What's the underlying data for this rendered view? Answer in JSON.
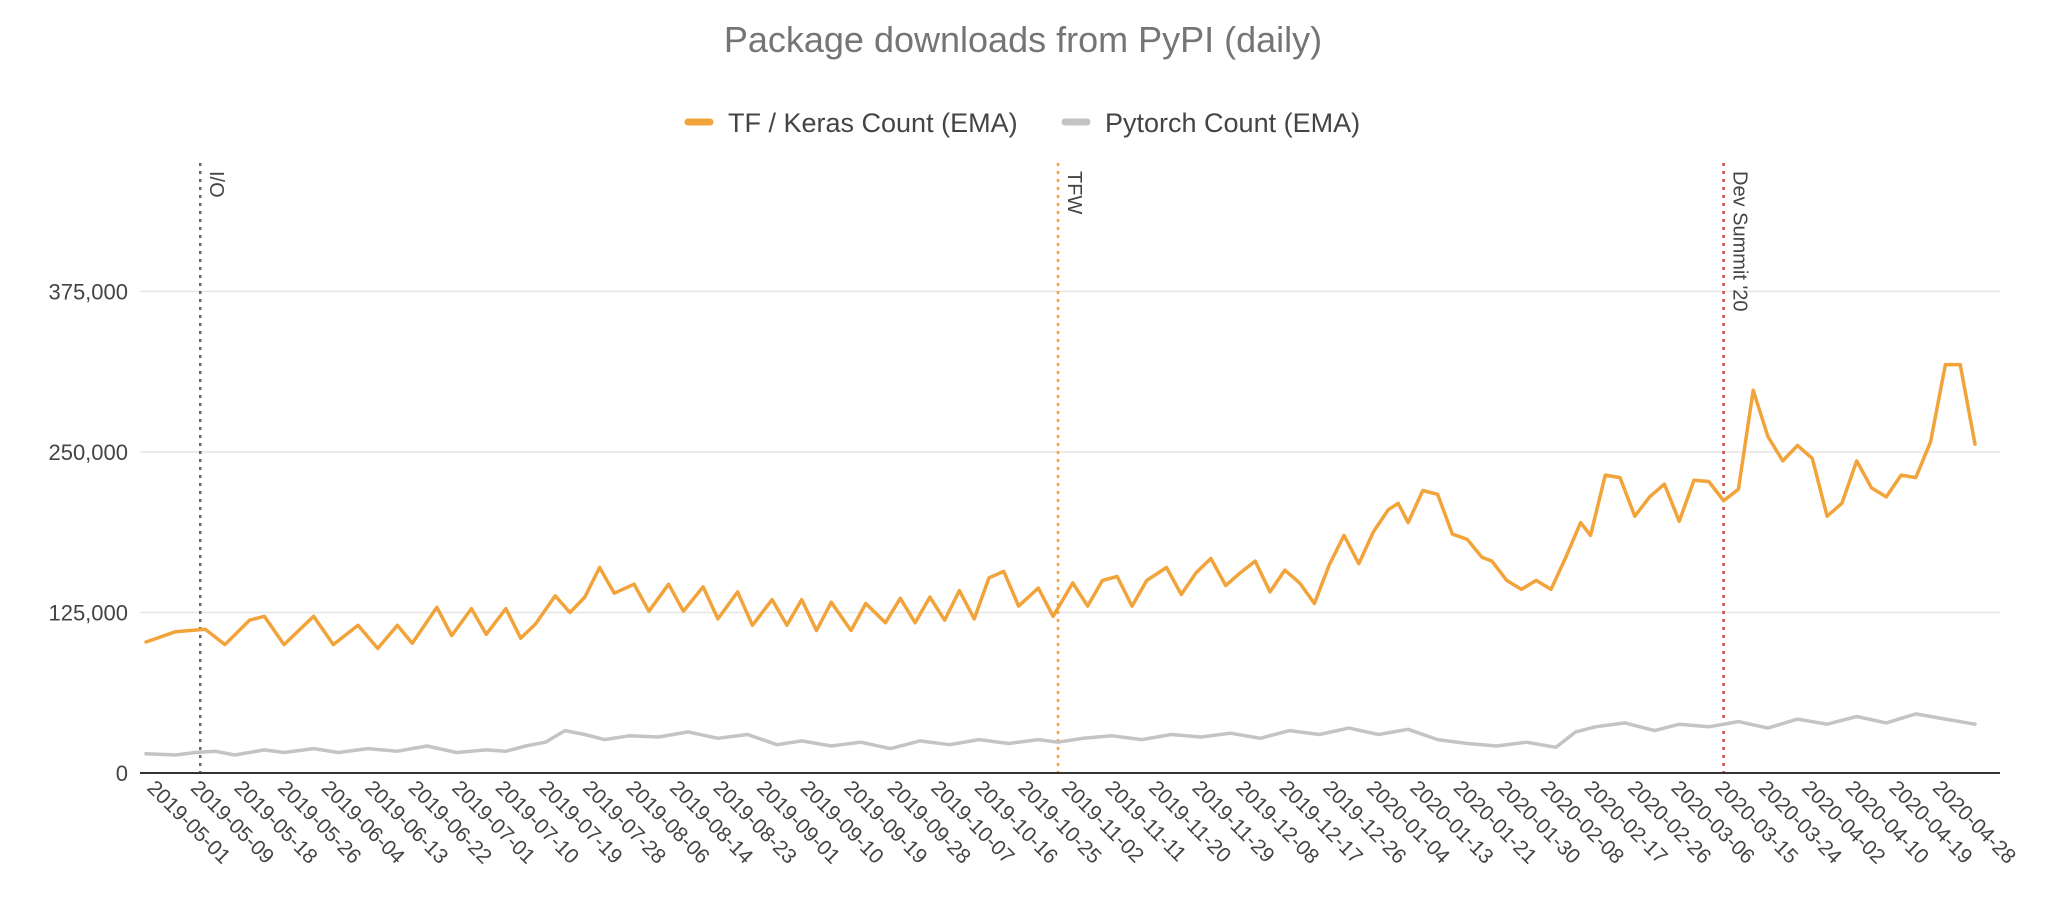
{
  "chart_data": {
    "type": "line",
    "title": "Package downloads from PyPI (daily)",
    "legend_position": "top-center",
    "grid": true,
    "ylim": [
      0,
      475000
    ],
    "y_ticks": [
      {
        "value": 0,
        "label": "0"
      },
      {
        "value": 125000,
        "label": "125,000"
      },
      {
        "value": 250000,
        "label": "250,000"
      },
      {
        "value": 375000,
        "label": "375,000"
      }
    ],
    "x_start": "2019-04-26",
    "x_end": "2020-05-01",
    "x_tick_labels": [
      "2019-05-01",
      "2019-05-09",
      "2019-05-18",
      "2019-05-26",
      "2019-06-04",
      "2019-06-13",
      "2019-06-22",
      "2019-07-01",
      "2019-07-10",
      "2019-07-19",
      "2019-07-28",
      "2019-08-06",
      "2019-08-14",
      "2019-08-23",
      "2019-09-01",
      "2019-09-10",
      "2019-09-19",
      "2019-09-28",
      "2019-10-07",
      "2019-10-16",
      "2019-10-25",
      "2019-11-02",
      "2019-11-11",
      "2019-11-20",
      "2019-11-29",
      "2019-12-08",
      "2019-12-17",
      "2019-12-26",
      "2020-01-04",
      "2020-01-13",
      "2020-01-21",
      "2020-01-30",
      "2020-02-08",
      "2020-02-17",
      "2020-02-26",
      "2020-03-06",
      "2020-03-15",
      "2020-03-24",
      "2020-04-02",
      "2020-04-10",
      "2020-04-19",
      "2020-04-28"
    ],
    "annotations": [
      {
        "label": "I/O",
        "date": "2019-05-07",
        "color": "#666666"
      },
      {
        "label": "TFW",
        "date": "2019-10-28",
        "color": "#f2a33a"
      },
      {
        "label": "Dev Summit '20",
        "date": "2020-03-11",
        "color": "#d64a3b"
      }
    ],
    "series": [
      {
        "name": "TF / Keras Count (EMA)",
        "color": "#f2a33a",
        "points": [
          [
            "2019-04-26",
            102000
          ],
          [
            "2019-05-02",
            110000
          ],
          [
            "2019-05-08",
            112000
          ],
          [
            "2019-05-12",
            100000
          ],
          [
            "2019-05-17",
            119000
          ],
          [
            "2019-05-20",
            122000
          ],
          [
            "2019-05-24",
            100000
          ],
          [
            "2019-05-30",
            122000
          ],
          [
            "2019-06-03",
            100000
          ],
          [
            "2019-06-08",
            115000
          ],
          [
            "2019-06-12",
            97000
          ],
          [
            "2019-06-16",
            115000
          ],
          [
            "2019-06-19",
            101000
          ],
          [
            "2019-06-24",
            129000
          ],
          [
            "2019-06-27",
            107000
          ],
          [
            "2019-07-01",
            128000
          ],
          [
            "2019-07-04",
            108000
          ],
          [
            "2019-07-08",
            128000
          ],
          [
            "2019-07-11",
            105000
          ],
          [
            "2019-07-14",
            116000
          ],
          [
            "2019-07-18",
            138000
          ],
          [
            "2019-07-21",
            125000
          ],
          [
            "2019-07-24",
            137000
          ],
          [
            "2019-07-27",
            160000
          ],
          [
            "2019-07-30",
            140000
          ],
          [
            "2019-08-03",
            147000
          ],
          [
            "2019-08-06",
            126000
          ],
          [
            "2019-08-10",
            147000
          ],
          [
            "2019-08-13",
            126000
          ],
          [
            "2019-08-17",
            145000
          ],
          [
            "2019-08-20",
            120000
          ],
          [
            "2019-08-24",
            141000
          ],
          [
            "2019-08-27",
            115000
          ],
          [
            "2019-08-31",
            135000
          ],
          [
            "2019-09-03",
            115000
          ],
          [
            "2019-09-06",
            135000
          ],
          [
            "2019-09-09",
            111000
          ],
          [
            "2019-09-12",
            133000
          ],
          [
            "2019-09-16",
            111000
          ],
          [
            "2019-09-19",
            132000
          ],
          [
            "2019-09-23",
            117000
          ],
          [
            "2019-09-26",
            136000
          ],
          [
            "2019-09-29",
            117000
          ],
          [
            "2019-10-02",
            137000
          ],
          [
            "2019-10-05",
            119000
          ],
          [
            "2019-10-08",
            142000
          ],
          [
            "2019-10-11",
            120000
          ],
          [
            "2019-10-14",
            152000
          ],
          [
            "2019-10-17",
            157000
          ],
          [
            "2019-10-20",
            130000
          ],
          [
            "2019-10-24",
            144000
          ],
          [
            "2019-10-27",
            122000
          ],
          [
            "2019-10-31",
            148000
          ],
          [
            "2019-11-03",
            130000
          ],
          [
            "2019-11-06",
            150000
          ],
          [
            "2019-11-09",
            153000
          ],
          [
            "2019-11-12",
            130000
          ],
          [
            "2019-11-15",
            150000
          ],
          [
            "2019-11-19",
            160000
          ],
          [
            "2019-11-22",
            139000
          ],
          [
            "2019-11-25",
            156000
          ],
          [
            "2019-11-28",
            167000
          ],
          [
            "2019-12-01",
            146000
          ],
          [
            "2019-12-04",
            156000
          ],
          [
            "2019-12-07",
            165000
          ],
          [
            "2019-12-10",
            141000
          ],
          [
            "2019-12-13",
            158000
          ],
          [
            "2019-12-16",
            148000
          ],
          [
            "2019-12-19",
            132000
          ],
          [
            "2019-12-22",
            162000
          ],
          [
            "2019-12-25",
            185000
          ],
          [
            "2019-12-28",
            163000
          ],
          [
            "2019-12-31",
            188000
          ],
          [
            "2020-01-03",
            205000
          ],
          [
            "2020-01-05",
            210000
          ],
          [
            "2020-01-07",
            195000
          ],
          [
            "2020-01-10",
            220000
          ],
          [
            "2020-01-13",
            217000
          ],
          [
            "2020-01-16",
            186000
          ],
          [
            "2020-01-19",
            182000
          ],
          [
            "2020-01-22",
            168000
          ],
          [
            "2020-01-24",
            165000
          ],
          [
            "2020-01-27",
            150000
          ],
          [
            "2020-01-30",
            143000
          ],
          [
            "2020-02-02",
            150000
          ],
          [
            "2020-02-05",
            143000
          ],
          [
            "2020-02-08",
            168000
          ],
          [
            "2020-02-11",
            195000
          ],
          [
            "2020-02-13",
            185000
          ],
          [
            "2020-02-16",
            232000
          ],
          [
            "2020-02-19",
            230000
          ],
          [
            "2020-02-22",
            200000
          ],
          [
            "2020-02-25",
            215000
          ],
          [
            "2020-02-28",
            225000
          ],
          [
            "2020-03-02",
            196000
          ],
          [
            "2020-03-05",
            228000
          ],
          [
            "2020-03-08",
            227000
          ],
          [
            "2020-03-11",
            212000
          ],
          [
            "2020-03-14",
            221000
          ],
          [
            "2020-03-17",
            298000
          ],
          [
            "2020-03-20",
            262000
          ],
          [
            "2020-03-23",
            243000
          ],
          [
            "2020-03-26",
            255000
          ],
          [
            "2020-03-29",
            245000
          ],
          [
            "2020-04-01",
            200000
          ],
          [
            "2020-04-04",
            210000
          ],
          [
            "2020-04-07",
            243000
          ],
          [
            "2020-04-10",
            222000
          ],
          [
            "2020-04-13",
            215000
          ],
          [
            "2020-04-16",
            232000
          ],
          [
            "2020-04-19",
            230000
          ],
          [
            "2020-04-22",
            258000
          ],
          [
            "2020-04-25",
            318000
          ],
          [
            "2020-04-28",
            318000
          ],
          [
            "2020-05-01",
            256000
          ]
        ]
      },
      {
        "name": "Pytorch Count (EMA)",
        "color": "#c4c4c4",
        "points": [
          [
            "2019-04-26",
            15000
          ],
          [
            "2019-05-02",
            14000
          ],
          [
            "2019-05-06",
            16000
          ],
          [
            "2019-05-10",
            17000
          ],
          [
            "2019-05-14",
            14000
          ],
          [
            "2019-05-20",
            18000
          ],
          [
            "2019-05-24",
            16000
          ],
          [
            "2019-05-30",
            19000
          ],
          [
            "2019-06-04",
            16000
          ],
          [
            "2019-06-10",
            19000
          ],
          [
            "2019-06-16",
            17000
          ],
          [
            "2019-06-22",
            21000
          ],
          [
            "2019-06-28",
            16000
          ],
          [
            "2019-07-04",
            18000
          ],
          [
            "2019-07-08",
            17000
          ],
          [
            "2019-07-12",
            21000
          ],
          [
            "2019-07-16",
            24000
          ],
          [
            "2019-07-20",
            33000
          ],
          [
            "2019-07-24",
            30000
          ],
          [
            "2019-07-28",
            26000
          ],
          [
            "2019-08-02",
            29000
          ],
          [
            "2019-08-08",
            28000
          ],
          [
            "2019-08-14",
            32000
          ],
          [
            "2019-08-20",
            27000
          ],
          [
            "2019-08-26",
            30000
          ],
          [
            "2019-09-01",
            22000
          ],
          [
            "2019-09-06",
            25000
          ],
          [
            "2019-09-12",
            21000
          ],
          [
            "2019-09-18",
            24000
          ],
          [
            "2019-09-24",
            19000
          ],
          [
            "2019-09-30",
            25000
          ],
          [
            "2019-10-06",
            22000
          ],
          [
            "2019-10-12",
            26000
          ],
          [
            "2019-10-18",
            23000
          ],
          [
            "2019-10-24",
            26000
          ],
          [
            "2019-10-28",
            24000
          ],
          [
            "2019-11-02",
            27000
          ],
          [
            "2019-11-08",
            29000
          ],
          [
            "2019-11-14",
            26000
          ],
          [
            "2019-11-20",
            30000
          ],
          [
            "2019-11-26",
            28000
          ],
          [
            "2019-12-02",
            31000
          ],
          [
            "2019-12-08",
            27000
          ],
          [
            "2019-12-14",
            33000
          ],
          [
            "2019-12-20",
            30000
          ],
          [
            "2019-12-26",
            35000
          ],
          [
            "2020-01-01",
            30000
          ],
          [
            "2020-01-07",
            34000
          ],
          [
            "2020-01-13",
            26000
          ],
          [
            "2020-01-19",
            23000
          ],
          [
            "2020-01-25",
            21000
          ],
          [
            "2020-01-31",
            24000
          ],
          [
            "2020-02-06",
            20000
          ],
          [
            "2020-02-10",
            32000
          ],
          [
            "2020-02-14",
            36000
          ],
          [
            "2020-02-20",
            39000
          ],
          [
            "2020-02-26",
            33000
          ],
          [
            "2020-03-02",
            38000
          ],
          [
            "2020-03-08",
            36000
          ],
          [
            "2020-03-14",
            40000
          ],
          [
            "2020-03-20",
            35000
          ],
          [
            "2020-03-26",
            42000
          ],
          [
            "2020-04-01",
            38000
          ],
          [
            "2020-04-07",
            44000
          ],
          [
            "2020-04-13",
            39000
          ],
          [
            "2020-04-19",
            46000
          ],
          [
            "2020-04-25",
            42000
          ],
          [
            "2020-05-01",
            38000
          ]
        ]
      }
    ]
  }
}
